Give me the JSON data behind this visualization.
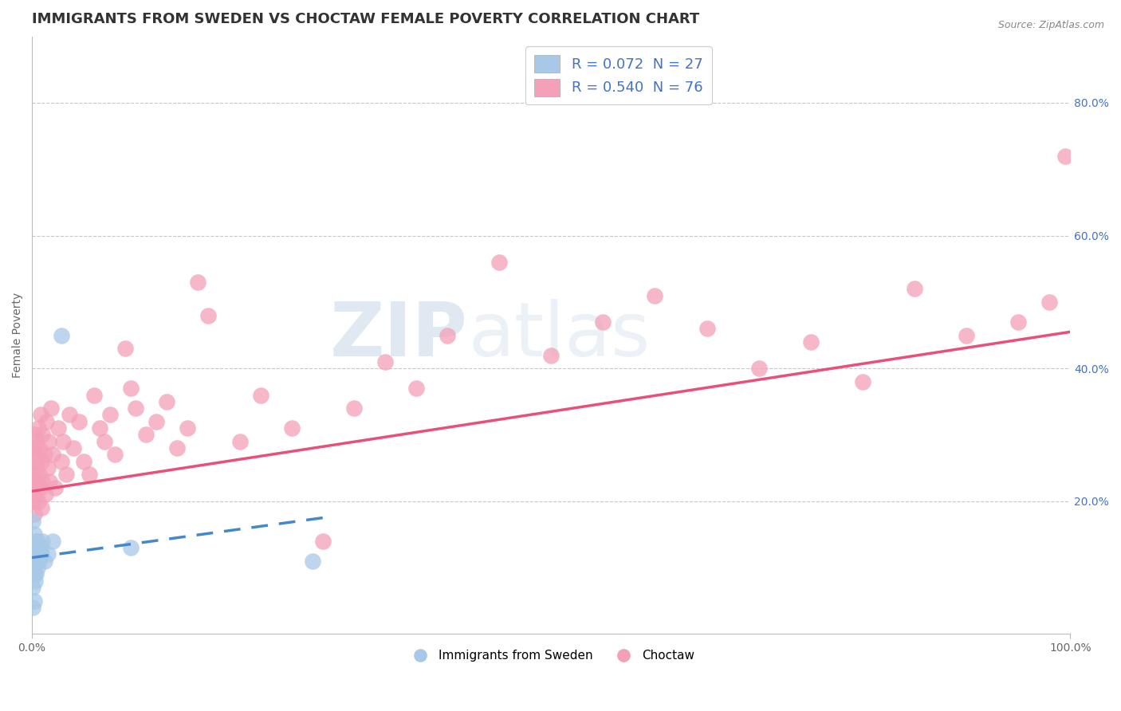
{
  "title": "IMMIGRANTS FROM SWEDEN VS CHOCTAW FEMALE POVERTY CORRELATION CHART",
  "source": "Source: ZipAtlas.com",
  "ylabel": "Female Poverty",
  "right_yticks": [
    "80.0%",
    "60.0%",
    "40.0%",
    "20.0%"
  ],
  "right_ytick_vals": [
    0.8,
    0.6,
    0.4,
    0.2
  ],
  "watermark_zip": "ZIP",
  "watermark_atlas": "atlas",
  "blue_color": "#A8C8E8",
  "pink_color": "#F4A0B8",
  "blue_line_color": "#4488CC",
  "pink_line_color": "#E8507A",
  "blue_scatter": {
    "x": [
      0.001,
      0.001,
      0.001,
      0.001,
      0.001,
      0.002,
      0.002,
      0.002,
      0.002,
      0.003,
      0.003,
      0.003,
      0.004,
      0.004,
      0.005,
      0.005,
      0.006,
      0.007,
      0.008,
      0.009,
      0.01,
      0.012,
      0.015,
      0.02,
      0.028,
      0.095,
      0.27
    ],
    "y": [
      0.04,
      0.07,
      0.1,
      0.13,
      0.17,
      0.05,
      0.09,
      0.12,
      0.15,
      0.08,
      0.11,
      0.14,
      0.09,
      0.13,
      0.1,
      0.14,
      0.12,
      0.11,
      0.13,
      0.12,
      0.14,
      0.11,
      0.12,
      0.14,
      0.45,
      0.13,
      0.11
    ]
  },
  "pink_scatter": {
    "x": [
      0.001,
      0.001,
      0.001,
      0.002,
      0.002,
      0.003,
      0.003,
      0.003,
      0.004,
      0.004,
      0.005,
      0.005,
      0.006,
      0.006,
      0.007,
      0.007,
      0.008,
      0.008,
      0.009,
      0.009,
      0.01,
      0.01,
      0.012,
      0.013,
      0.014,
      0.015,
      0.016,
      0.017,
      0.018,
      0.02,
      0.022,
      0.025,
      0.028,
      0.03,
      0.033,
      0.036,
      0.04,
      0.045,
      0.05,
      0.055,
      0.06,
      0.065,
      0.07,
      0.075,
      0.08,
      0.09,
      0.095,
      0.1,
      0.11,
      0.12,
      0.13,
      0.14,
      0.15,
      0.16,
      0.17,
      0.2,
      0.22,
      0.25,
      0.28,
      0.31,
      0.34,
      0.37,
      0.4,
      0.45,
      0.5,
      0.55,
      0.6,
      0.65,
      0.7,
      0.75,
      0.8,
      0.85,
      0.9,
      0.95,
      0.98,
      0.995
    ],
    "y": [
      0.2,
      0.24,
      0.28,
      0.18,
      0.22,
      0.26,
      0.3,
      0.21,
      0.25,
      0.29,
      0.23,
      0.27,
      0.2,
      0.31,
      0.24,
      0.28,
      0.22,
      0.33,
      0.19,
      0.26,
      0.3,
      0.23,
      0.27,
      0.21,
      0.32,
      0.25,
      0.29,
      0.23,
      0.34,
      0.27,
      0.22,
      0.31,
      0.26,
      0.29,
      0.24,
      0.33,
      0.28,
      0.32,
      0.26,
      0.24,
      0.36,
      0.31,
      0.29,
      0.33,
      0.27,
      0.43,
      0.37,
      0.34,
      0.3,
      0.32,
      0.35,
      0.28,
      0.31,
      0.53,
      0.48,
      0.29,
      0.36,
      0.31,
      0.14,
      0.34,
      0.41,
      0.37,
      0.45,
      0.56,
      0.42,
      0.47,
      0.51,
      0.46,
      0.4,
      0.44,
      0.38,
      0.52,
      0.45,
      0.47,
      0.5,
      0.72
    ]
  },
  "blue_line": {
    "x0": 0.0,
    "x1": 0.28,
    "y0": 0.115,
    "y1": 0.175
  },
  "pink_line": {
    "x0": 0.0,
    "x1": 1.0,
    "y0": 0.215,
    "y1": 0.455
  },
  "xlim": [
    0.0,
    1.0
  ],
  "ylim": [
    0.0,
    0.9
  ],
  "background_color": "#FFFFFF",
  "grid_color": "#C8C8C8",
  "title_color": "#333333",
  "title_fontsize": 13,
  "axis_label_fontsize": 10,
  "tick_fontsize": 10,
  "legend_blue_label": "R = 0.072  N = 27",
  "legend_pink_label": "R = 0.540  N = 76",
  "bottom_legend_blue": "Immigrants from Sweden",
  "bottom_legend_pink": "Choctaw"
}
